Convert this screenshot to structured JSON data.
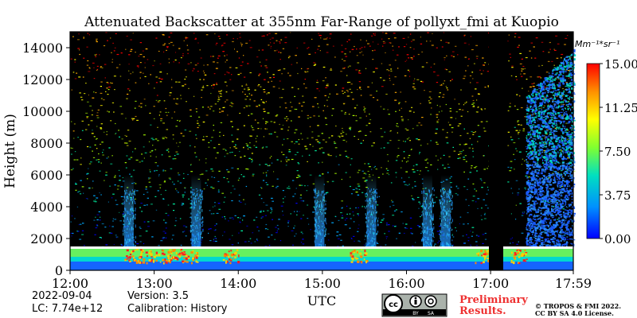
{
  "chart_data": {
    "type": "heatmap",
    "title": "Attenuated Backscatter at 355nm Far-Range of pollyxt_fmi at Kuopio",
    "xlabel": "UTC",
    "ylabel": "Height (m)",
    "x_ticks": [
      "12:00",
      "13:00",
      "14:00",
      "15:00",
      "16:00",
      "17:00",
      "17:59"
    ],
    "y_ticks": [
      0,
      2000,
      4000,
      6000,
      8000,
      10000,
      12000,
      14000
    ],
    "xlim": [
      "12:00",
      "17:59"
    ],
    "ylim": [
      0,
      15000
    ],
    "colorbar": {
      "unit": "Mm⁻¹*sr⁻¹",
      "ticks": [
        "0.00",
        "3.75",
        "7.50",
        "11.25",
        "15.00"
      ],
      "range": [
        0,
        15
      ],
      "colors": [
        "#0000ff",
        "#00aaff",
        "#00ffaa",
        "#aaff00",
        "#ffff00",
        "#ffaa00",
        "#ff0000"
      ]
    },
    "features": {
      "boundary_layer_top_m": 1400,
      "data_gap_utc": [
        "17:06",
        "17:12"
      ],
      "dense_aerosol_after_utc": "17:25"
    }
  },
  "footer": {
    "date": "2022-09-04",
    "lc": "LC: 7.74e+12",
    "version": "Version: 3.5",
    "calibration": "Calibration: History",
    "preliminary_line1": "Preliminary",
    "preliminary_line2": "Results.",
    "copyright_line1": "© TROPOS & FMI 2022.",
    "copyright_line2": "CC BY SA 4.0 License.",
    "license_badge": "cc-by-sa-badge",
    "license_badge_by": "BY",
    "license_badge_sa": "SA"
  }
}
